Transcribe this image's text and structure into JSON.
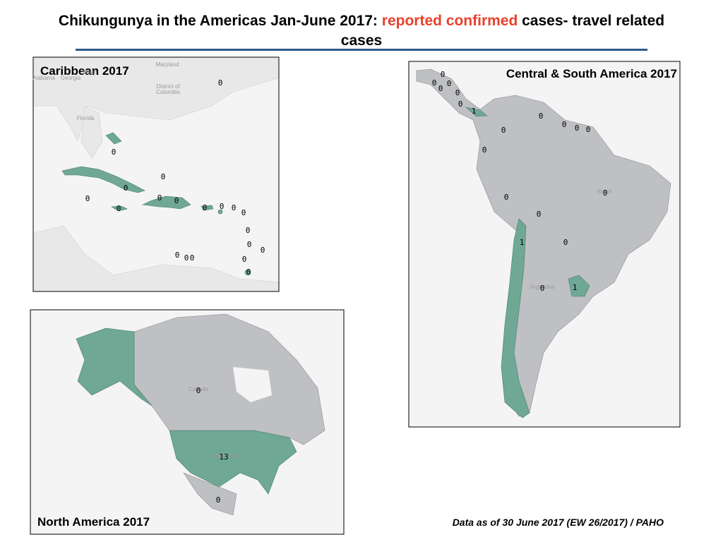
{
  "title": {
    "before": "Chikungunya in the Americas Jan-June 2017: ",
    "highlight": "reported confirmed",
    "after": " cases- travel related",
    "line2": "cases"
  },
  "panels": [
    {
      "title": "Caribbean 2017",
      "labels": [
        0,
        0,
        0,
        0,
        0,
        0,
        0,
        0,
        0,
        0,
        0,
        0,
        0,
        0,
        0,
        0,
        0,
        0,
        0,
        0
      ],
      "basemap_labels": [
        "Maryland",
        "District of",
        "Columbia",
        "Florida",
        "Alabama",
        "Georgia",
        "South"
      ]
    },
    {
      "title": "Central & South America  2017",
      "labels": [
        0,
        0,
        0,
        0,
        0,
        0,
        1,
        0,
        0,
        0,
        0,
        0,
        0,
        0,
        0,
        0,
        1,
        0,
        0,
        1
      ],
      "basemap_labels": [
        "Brazil",
        "Argentina"
      ]
    },
    {
      "title": "North America  2017",
      "labels": [
        0,
        13,
        0
      ],
      "basemap_labels": [
        "Canada",
        "United States"
      ]
    }
  ],
  "footer": "Data as of 30 June 2017 (EW 26/2017) / PAHO"
}
